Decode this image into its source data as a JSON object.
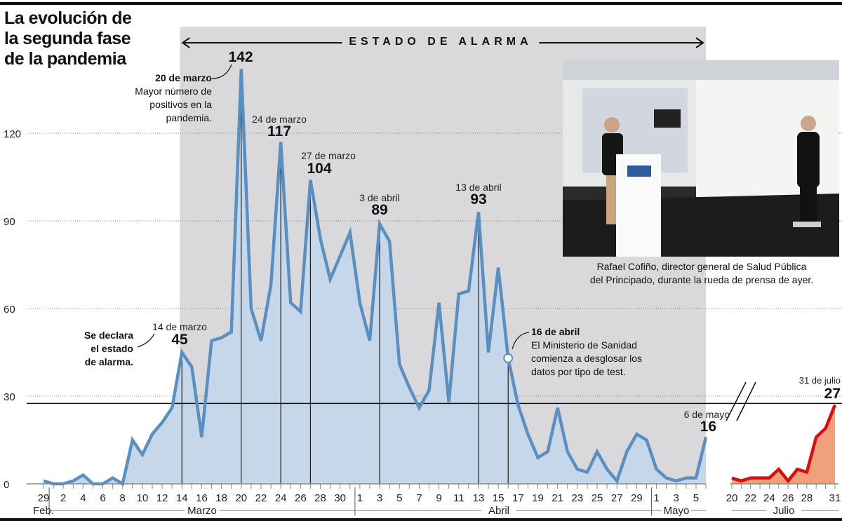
{
  "title": "La evolución de la segunda fase de la pandemia",
  "band_label": "ESTADO DE ALARMA",
  "photo": {
    "caption_line1": "Rafael Cofiño, director general de Salud Pública",
    "caption_line2": "del Principado, durante la rueda de prensa de ayer."
  },
  "annotations": {
    "peak_value": "142",
    "peak_date": "20 de marzo",
    "peak_note": [
      "Mayor número de",
      "positivos en la",
      "pandemia."
    ],
    "m24_date": "24 de marzo",
    "m24_value": "117",
    "m27_date": "27 de marzo",
    "m27_value": "104",
    "a3_date": "3 de abril",
    "a3_value": "89",
    "a13_date": "13 de abril",
    "a13_value": "93",
    "m14_date": "14 de marzo",
    "m14_value": "45",
    "alarm_note": [
      "Se declara",
      "el estado",
      "de alarma."
    ],
    "a16_date": "16 de abril",
    "a16_note": [
      "El Ministerio de Sanidad",
      "comienza a desglosar los",
      "datos por tipo de test."
    ],
    "may6_date": "6 de mayo",
    "may6_value": "16",
    "jul31_date": "31 de julio",
    "jul31_value": "27"
  },
  "colors": {
    "spring_line": "#5a8fc2",
    "spring_fill": "#c6d7ea",
    "summer_line": "#d70f0f",
    "summer_fill": "#f0a07c",
    "alarm_band": "#d9d9dc"
  },
  "chart_data": {
    "type": "area",
    "title": "La evolución de la segunda fase de la pandemia",
    "xlabel": "",
    "ylabel": "",
    "ylim": [
      0,
      145
    ],
    "y_ticks": [
      "0",
      "30",
      "60",
      "90",
      "120"
    ],
    "grid": "dotted horizontal",
    "reference_line": 27.5,
    "series": [
      {
        "period": "29 Feb - 6 May",
        "x": [
          "02-29",
          "03-01",
          "03-02",
          "03-03",
          "03-04",
          "03-05",
          "03-06",
          "03-07",
          "03-08",
          "03-09",
          "03-10",
          "03-11",
          "03-12",
          "03-13",
          "03-14",
          "03-15",
          "03-16",
          "03-17",
          "03-18",
          "03-19",
          "03-20",
          "03-21",
          "03-22",
          "03-23",
          "03-24",
          "03-25",
          "03-26",
          "03-27",
          "03-28",
          "03-29",
          "03-30",
          "03-31",
          "04-01",
          "04-02",
          "04-03",
          "04-04",
          "04-05",
          "04-06",
          "04-07",
          "04-08",
          "04-09",
          "04-10",
          "04-11",
          "04-12",
          "04-13",
          "04-14",
          "04-15",
          "04-16",
          "04-17",
          "04-18",
          "04-19",
          "04-20",
          "04-21",
          "04-22",
          "04-23",
          "04-24",
          "04-25",
          "04-26",
          "04-27",
          "04-28",
          "04-29",
          "04-30",
          "05-01",
          "05-02",
          "05-03",
          "05-04",
          "05-05",
          "05-06"
        ],
        "values": [
          1,
          0,
          0,
          1,
          3,
          0,
          0,
          2,
          0,
          15,
          10,
          17,
          21,
          26,
          45,
          40,
          16,
          49,
          50,
          52,
          142,
          60,
          49,
          68,
          117,
          62,
          59,
          104,
          84,
          70,
          78,
          86,
          62,
          49,
          89,
          83,
          41,
          33,
          26,
          32,
          62,
          28,
          65,
          66,
          93,
          45,
          74,
          43,
          27,
          17,
          9,
          11,
          26,
          11,
          5,
          4,
          11,
          5,
          1,
          11,
          17,
          15,
          5,
          2,
          1,
          2,
          2,
          16
        ]
      },
      {
        "period": "20 Jul - 31 Jul",
        "x": [
          "07-20",
          "07-21",
          "07-22",
          "07-23",
          "07-24",
          "07-25",
          "07-26",
          "07-27",
          "07-28",
          "07-29",
          "07-30",
          "07-31"
        ],
        "values": [
          2,
          1,
          2,
          2,
          2,
          5,
          1,
          5,
          4,
          16,
          19,
          27
        ]
      }
    ],
    "alarm_period": [
      "03-14",
      "05-06"
    ],
    "marked_dates": [
      "03-14",
      "03-20",
      "03-24",
      "03-27",
      "04-03",
      "04-13",
      "04-16"
    ],
    "x_ticks": [
      {
        "date": "02-29",
        "label": "29"
      },
      {
        "date": "03-02",
        "label": "2"
      },
      {
        "date": "03-04",
        "label": "4"
      },
      {
        "date": "03-06",
        "label": "6"
      },
      {
        "date": "03-08",
        "label": "8"
      },
      {
        "date": "03-10",
        "label": "10"
      },
      {
        "date": "03-12",
        "label": "12"
      },
      {
        "date": "03-14",
        "label": "14"
      },
      {
        "date": "03-16",
        "label": "16"
      },
      {
        "date": "03-18",
        "label": "18"
      },
      {
        "date": "03-20",
        "label": "20"
      },
      {
        "date": "03-22",
        "label": "22"
      },
      {
        "date": "03-24",
        "label": "24"
      },
      {
        "date": "03-26",
        "label": "26"
      },
      {
        "date": "03-28",
        "label": "28"
      },
      {
        "date": "03-30",
        "label": "30"
      },
      {
        "date": "04-01",
        "label": "1"
      },
      {
        "date": "04-03",
        "label": "3"
      },
      {
        "date": "04-05",
        "label": "5"
      },
      {
        "date": "04-07",
        "label": "7"
      },
      {
        "date": "04-09",
        "label": "9"
      },
      {
        "date": "04-11",
        "label": "11"
      },
      {
        "date": "04-13",
        "label": "13"
      },
      {
        "date": "04-15",
        "label": "15"
      },
      {
        "date": "04-17",
        "label": "17"
      },
      {
        "date": "04-19",
        "label": "19"
      },
      {
        "date": "04-21",
        "label": "21"
      },
      {
        "date": "04-23",
        "label": "23"
      },
      {
        "date": "04-25",
        "label": "25"
      },
      {
        "date": "04-27",
        "label": "27"
      },
      {
        "date": "04-29",
        "label": "29"
      },
      {
        "date": "05-01",
        "label": "1"
      },
      {
        "date": "05-03",
        "label": "3"
      },
      {
        "date": "05-05",
        "label": "5"
      },
      {
        "date": "07-20",
        "label": "20"
      },
      {
        "date": "07-22",
        "label": "22"
      },
      {
        "date": "07-24",
        "label": "24"
      },
      {
        "date": "07-26",
        "label": "26"
      },
      {
        "date": "07-28",
        "label": "28"
      },
      {
        "date": "07-31",
        "label": "31"
      }
    ],
    "months": [
      "Feb.",
      "Marzo",
      "Abril",
      "Mayo",
      "Julio"
    ]
  }
}
